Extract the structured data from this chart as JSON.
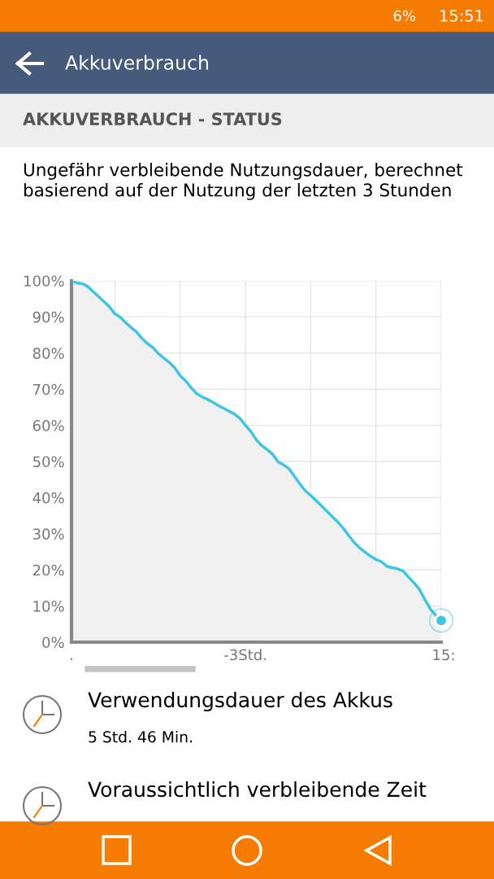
{
  "chart_data": {
    "type": "area",
    "title": "Akkuverbrauch",
    "subtitle": "Ungefähr verbleibende Nutzungsdauer, berechnet basierend auf der Nutzung der letzten 3 Stunden",
    "annotations": [
      "6%",
      "15:51",
      "AKKUVERBRAUCH - STATUS",
      "Verwendungsdauer des Akkus",
      "5 Std. 46 Min.",
      "Voraussichtlich verbleibende Zeit",
      ":"
    ],
    "categories": [
      ".",
      null,
      null,
      null,
      null,
      null,
      null,
      null,
      null,
      null,
      null,
      null,
      null,
      null,
      null,
      null,
      null,
      null,
      null,
      null,
      null,
      null,
      null,
      null,
      null,
      null,
      null,
      null,
      null,
      null,
      null,
      null,
      "-3Std.",
      null,
      null,
      null,
      null,
      null,
      null,
      null,
      null,
      null,
      null,
      null,
      null,
      null,
      null,
      null,
      null,
      null,
      null,
      null,
      null,
      null,
      null,
      null,
      null,
      null,
      null,
      null,
      null,
      null,
      null,
      null,
      null,
      null,
      null,
      null,
      "15"
    ],
    "ylim": [
      0,
      100
    ],
    "yticks": [
      {
        "value": 0,
        "label": "0%"
      },
      {
        "value": 10,
        "label": "10%"
      },
      {
        "value": 20,
        "label": "20%"
      },
      {
        "value": 30,
        "label": "30%"
      },
      {
        "value": 40,
        "label": "40%"
      },
      {
        "value": 50,
        "label": "50%"
      },
      {
        "value": 60,
        "label": "60%"
      },
      {
        "value": 70,
        "label": "70%"
      },
      {
        "value": 80,
        "label": "80%"
      },
      {
        "value": 90,
        "label": "90%"
      },
      {
        "value": 100,
        "label": "100%"
      }
    ],
    "grid": true,
    "series": [
      {
        "color": "#3ec5e3",
        "values": [
          100,
          99.4,
          99.2,
          98.4,
          97.0,
          95.6,
          94.2,
          92.8,
          90.8,
          89.9,
          88.4,
          87.0,
          85.8,
          84.0,
          82.6,
          81.5,
          79.8,
          78.6,
          77.4,
          75.9,
          73.7,
          72.3,
          70.4,
          68.8,
          67.9,
          67.2,
          66.4,
          65.5,
          64.7,
          63.9,
          63.1,
          61.9,
          60,
          58.3,
          56.0,
          54.4,
          53.3,
          52.0,
          49.9,
          49.1,
          48.0,
          45.9,
          43.8,
          41.9,
          40.6,
          39.2,
          37.7,
          36.2,
          34.7,
          33.2,
          31.5,
          29.5,
          27.6,
          26.1,
          24.9,
          23.8,
          22.9,
          22.3,
          21.0,
          20.6,
          20.3,
          19.7,
          18.0,
          16.4,
          14.6,
          11.8,
          9.2,
          7.4,
          6
        ]
      },
      {
        "type": "scatter",
        "color": "#3ec5e3",
        "marker": "circle",
        "x": [
          "15"
        ],
        "values": [
          6
        ]
      }
    ]
  }
}
